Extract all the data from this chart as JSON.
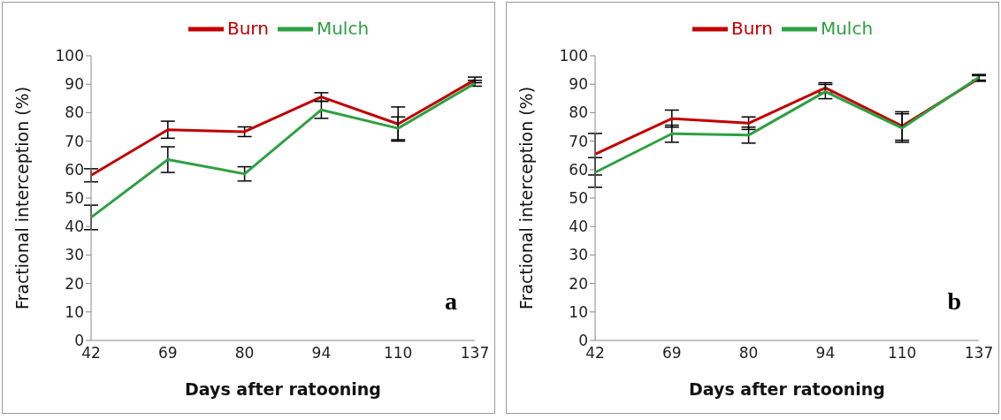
{
  "chart_data": [
    {
      "type": "line",
      "xlabel": "Days after ratooning",
      "ylabel": "Fractional interception (%)",
      "categories": [
        "42",
        "69",
        "80",
        "94",
        "110",
        "137"
      ],
      "ylim": [
        0,
        100
      ],
      "yticks": [
        0,
        10,
        20,
        30,
        40,
        50,
        60,
        70,
        80,
        90,
        100
      ],
      "legend": "top",
      "grid": false,
      "marker": "none",
      "line_style": "solid",
      "annotations": [
        "a"
      ],
      "series": [
        {
          "name": "Burn",
          "color": "#c00000",
          "values": [
            58,
            74,
            73.3,
            85.5,
            76,
            91.5
          ],
          "errors": [
            2.3,
            3,
            1.7,
            1.5,
            6,
            1
          ]
        },
        {
          "name": "Mulch",
          "color": "#2ea043",
          "values": [
            43.2,
            63.5,
            58.5,
            81,
            74.5,
            90.3
          ],
          "errors": [
            4.3,
            4.5,
            2.5,
            3,
            4,
            1
          ]
        }
      ]
    },
    {
      "type": "line",
      "xlabel": "Days after ratooning",
      "ylabel": "Fractional interception (%)",
      "categories": [
        "42",
        "69",
        "80",
        "94",
        "110",
        "137"
      ],
      "ylim": [
        0,
        100
      ],
      "yticks": [
        0,
        10,
        20,
        30,
        40,
        50,
        60,
        70,
        80,
        90,
        100
      ],
      "legend": "top",
      "grid": false,
      "marker": "none",
      "line_style": "solid",
      "annotations": [
        "b"
      ],
      "series": [
        {
          "name": "Burn",
          "color": "#c00000",
          "values": [
            65.4,
            77.9,
            76.3,
            88.7,
            75.3,
            92
          ],
          "errors": [
            7.3,
            3,
            2.2,
            1.8,
            5,
            1
          ]
        },
        {
          "name": "Mulch",
          "color": "#2ea043",
          "values": [
            59,
            72.6,
            72.1,
            87.4,
            74.6,
            92.4
          ],
          "errors": [
            5.2,
            3,
            2.8,
            2.5,
            5,
            1
          ]
        }
      ]
    }
  ]
}
